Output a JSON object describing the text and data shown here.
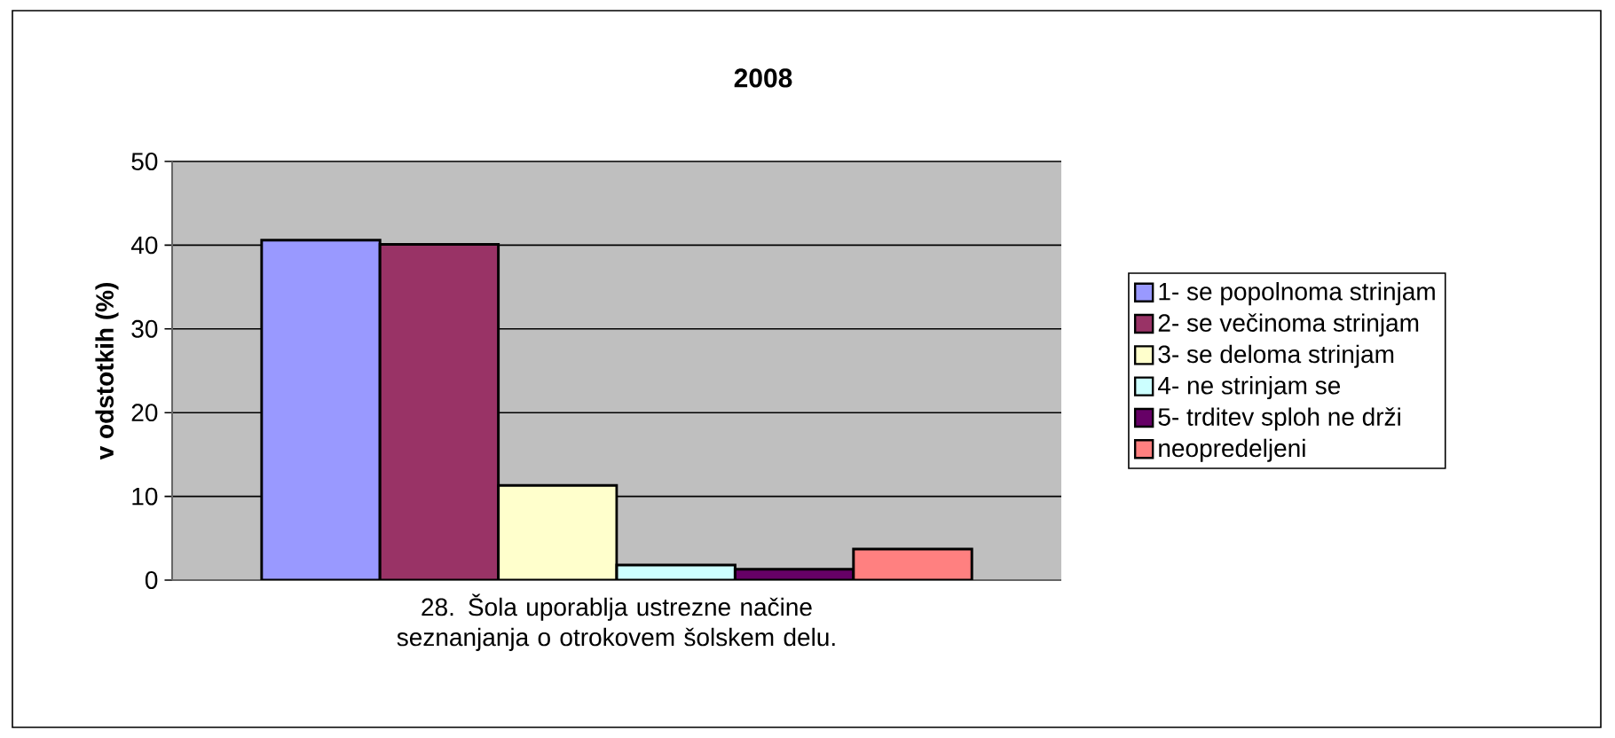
{
  "chart_data": {
    "type": "bar",
    "title": "2008",
    "ylabel": "v odstotkih (%)",
    "categories": [
      "28. Šola uporablja ustrezne načine seznanjanja o otrokovem šolskem delu."
    ],
    "series": [
      {
        "name": "1- se popolnoma strinjam",
        "color": "#9999ff",
        "values": [
          40.6
        ]
      },
      {
        "name": "2- se večinoma strinjam",
        "color": "#993366",
        "values": [
          40.1
        ]
      },
      {
        "name": "3- se deloma strinjam",
        "color": "#ffffcc",
        "values": [
          11.3
        ]
      },
      {
        "name": "4- ne strinjam se",
        "color": "#ccffff",
        "values": [
          1.8
        ]
      },
      {
        "name": "5- trditev sploh ne drži",
        "color": "#660066",
        "values": [
          1.3
        ]
      },
      {
        "name": "neopredeljeni",
        "color": "#ff8080",
        "values": [
          3.7
        ]
      }
    ],
    "ylim": [
      0,
      50
    ],
    "yticks": [
      0,
      10,
      20,
      30,
      40,
      50
    ],
    "grid": "y",
    "legend": "right"
  }
}
